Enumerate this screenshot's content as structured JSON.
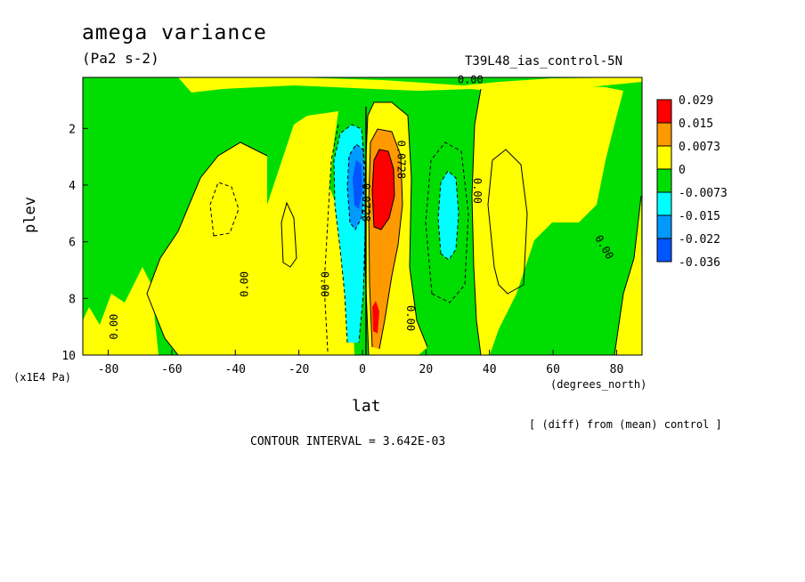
{
  "header": {
    "title": "amega variance",
    "units": "(Pa2 s-2)",
    "run_name": "T39L48_ias_control-5N"
  },
  "footer": {
    "diff_note": "[ (diff) from (mean) control ]",
    "contour_interval": "CONTOUR INTERVAL = 3.642E-03"
  },
  "chart_data": {
    "type": "contour",
    "xlabel": "lat",
    "xunits": "(degrees_north)",
    "ylabel": "plev",
    "yunits": "(x1E4 Pa)",
    "xlim": [
      -88,
      88
    ],
    "ylim": [
      10,
      0.2
    ],
    "x_ticks": [
      -80,
      -60,
      -40,
      -20,
      0,
      20,
      40,
      60,
      80
    ],
    "x_tick_labels": [
      "-80",
      "-60",
      "-40",
      "-20",
      "0",
      "20",
      "40",
      "60",
      "80"
    ],
    "y_ticks": [
      2,
      4,
      6,
      8,
      10
    ],
    "y_tick_labels": [
      "2",
      "4",
      "6",
      "8",
      "10"
    ],
    "colorbar": {
      "labels": [
        "0.029",
        "0.015",
        "0.0073",
        "0",
        "-0.0073",
        "-0.015",
        "-0.022",
        "-0.036"
      ],
      "colors": [
        "#ff0000",
        "#ff9900",
        "#ffff00",
        "#00dd00",
        "#00ffff",
        "#0099ff",
        "#0055ff"
      ]
    },
    "fill_colors": {
      "positive_low": "#ffff00",
      "positive_mid": "#ff9900",
      "positive_high": "#ff0000",
      "negative_low": "#00dd00",
      "negative_mid": "#00ffff",
      "negative_high": "#0099ff",
      "negative_max": "#0055ff"
    },
    "contour_labels": [
      {
        "text": "0.00",
        "lat": 34,
        "plev": 0.3,
        "rot": 0
      },
      {
        "text": "0.00",
        "lat": -78,
        "plev": 9.0,
        "rot": -90
      },
      {
        "text": "0.00",
        "lat": -37,
        "plev": 7.5,
        "rot": -90
      },
      {
        "text": "0.00",
        "lat": -12,
        "plev": 7.5,
        "rot": 90
      },
      {
        "text": "0.00",
        "lat": 15,
        "plev": 8.7,
        "rot": 90
      },
      {
        "text": "0.00",
        "lat": 36,
        "plev": 4.2,
        "rot": 90
      },
      {
        "text": "0.00",
        "lat": 76,
        "plev": 6.2,
        "rot": 60
      },
      {
        "text": "0.0728",
        "lat": 12,
        "plev": 3.1,
        "rot": 90
      },
      {
        "text": "-0.0728",
        "lat": 1,
        "plev": 4.5,
        "rot": 90
      }
    ]
  }
}
